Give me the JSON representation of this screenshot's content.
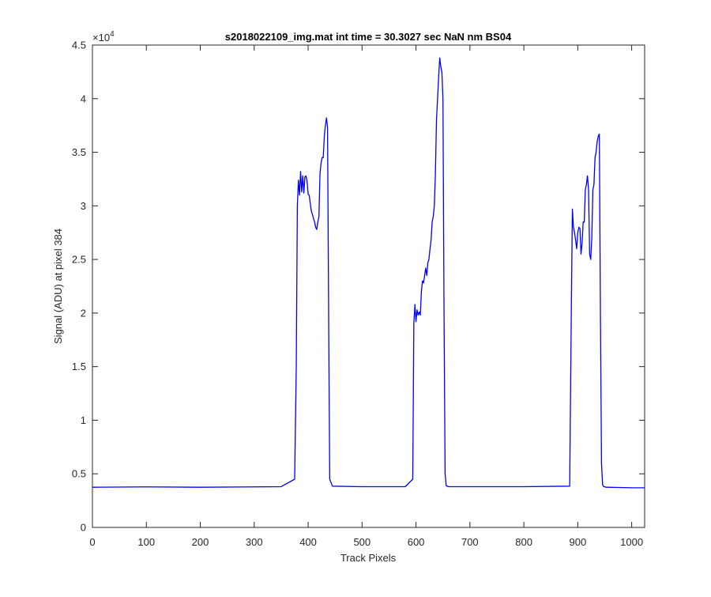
{
  "chart_data": {
    "type": "line",
    "title": "s2018022109_img.mat int time = 30.3027 sec  NaN nm BS04",
    "xlabel": "Track Pixels",
    "ylabel": "Signal (ADU) at pixel 384",
    "xlim": [
      0,
      1024
    ],
    "ylim": [
      0,
      45000
    ],
    "exponent_label": "×10",
    "exponent_power": "4",
    "x_ticks": [
      0,
      100,
      200,
      300,
      400,
      500,
      600,
      700,
      800,
      900,
      1000
    ],
    "x_tick_labels": [
      "0",
      "100",
      "200",
      "300",
      "400",
      "500",
      "600",
      "700",
      "800",
      "900",
      "1000"
    ],
    "y_ticks": [
      0,
      5000,
      10000,
      15000,
      20000,
      25000,
      30000,
      35000,
      40000,
      45000
    ],
    "y_tick_labels": [
      "0",
      "0.5",
      "1",
      "1.5",
      "2",
      "2.5",
      "3",
      "3.5",
      "4",
      "4.5"
    ],
    "grid": false,
    "line_color": "#0000ff",
    "series": [
      {
        "x": [
          0,
          100,
          200,
          300,
          350,
          375,
          378,
          380,
          382,
          384,
          386,
          388,
          390,
          392,
          394,
          396,
          398,
          400,
          402,
          404,
          406,
          408,
          410,
          412,
          414,
          416,
          418,
          420,
          422,
          424,
          426,
          428,
          430,
          432,
          434,
          436,
          438,
          440,
          445,
          500,
          580,
          594,
          596,
          598,
          600,
          602,
          604,
          606,
          608,
          610,
          612,
          614,
          616,
          618,
          620,
          622,
          624,
          626,
          628,
          630,
          632,
          634,
          636,
          638,
          640,
          642,
          644,
          646,
          648,
          650,
          652,
          654,
          656,
          660,
          700,
          800,
          885,
          888,
          890,
          892,
          894,
          896,
          898,
          900,
          902,
          904,
          906,
          908,
          910,
          912,
          914,
          916,
          918,
          920,
          922,
          924,
          926,
          928,
          930,
          932,
          934,
          936,
          938,
          940,
          942,
          944,
          946,
          948,
          950,
          952,
          955,
          1000,
          1024
        ],
        "y": [
          3750,
          3780,
          3750,
          3780,
          3800,
          4500,
          15000,
          30000,
          32400,
          31000,
          33200,
          31300,
          32800,
          31200,
          32700,
          32800,
          32300,
          31100,
          31000,
          30200,
          29500,
          29200,
          28800,
          28500,
          28000,
          27800,
          28500,
          29000,
          33000,
          34000,
          34500,
          34500,
          36500,
          37500,
          38200,
          37300,
          20000,
          4500,
          3850,
          3800,
          3800,
          4500,
          19000,
          20800,
          19200,
          20300,
          19800,
          20100,
          19800,
          22000,
          23000,
          22800,
          23500,
          24200,
          23500,
          24700,
          25000,
          26000,
          26800,
          28500,
          29000,
          30000,
          33000,
          38000,
          40000,
          42000,
          43800,
          43000,
          42500,
          40000,
          20000,
          5000,
          3900,
          3800,
          3800,
          3800,
          3850,
          20000,
          29700,
          28000,
          27500,
          26800,
          26000,
          27500,
          28000,
          27900,
          25500,
          26500,
          28500,
          28500,
          31500,
          32000,
          32800,
          31500,
          25500,
          25000,
          27000,
          31500,
          32000,
          34500,
          35000,
          36000,
          36500,
          36700,
          20000,
          6000,
          4000,
          3800,
          3800,
          3750,
          3750,
          3700,
          3700
        ]
      }
    ]
  }
}
